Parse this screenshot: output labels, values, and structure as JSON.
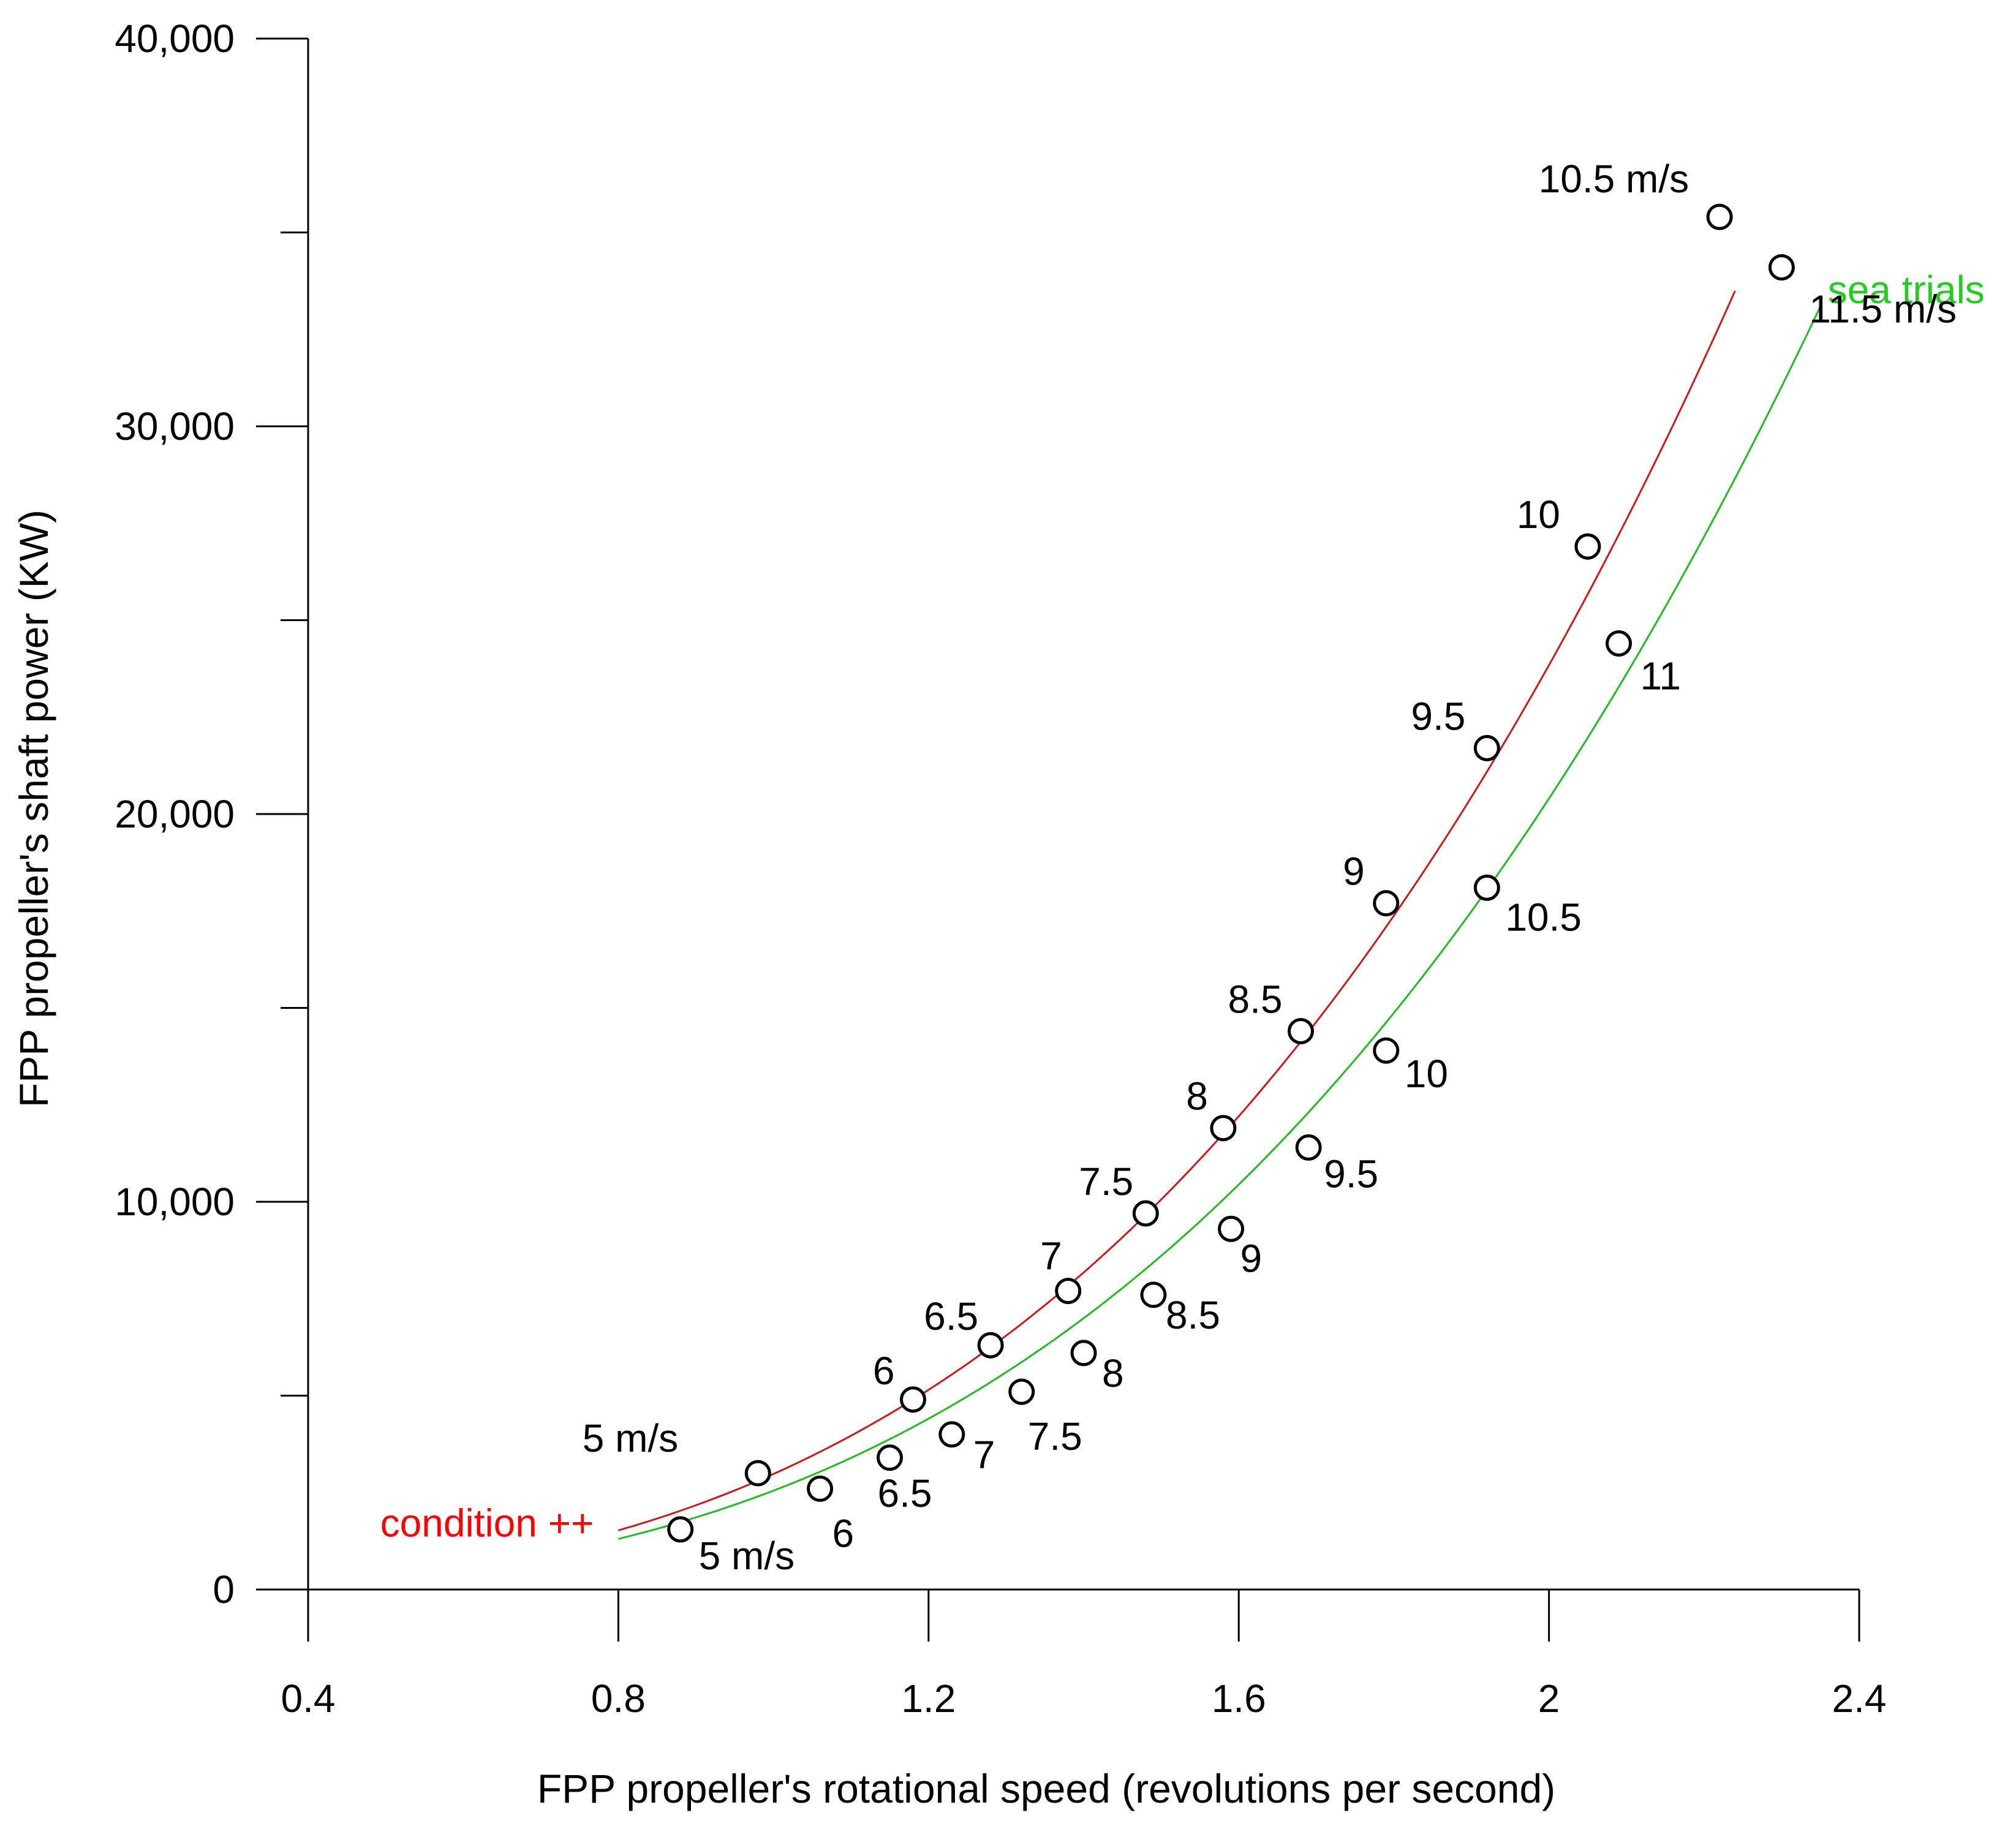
{
  "chart_data": {
    "type": "scatter",
    "title": "",
    "xlabel": "FPP propeller's rotational speed (revolutions per second)",
    "ylabel": "FPP propeller's shaft power (KW)",
    "xlim": [
      0.4,
      2.4
    ],
    "ylim": [
      0,
      40000
    ],
    "x_ticks": [
      {
        "value": 0.4,
        "label": "0.4"
      },
      {
        "value": 0.8,
        "label": "0.8"
      },
      {
        "value": 1.2,
        "label": "1.2"
      },
      {
        "value": 1.6,
        "label": "1.6"
      },
      {
        "value": 2.0,
        "label": "2"
      },
      {
        "value": 2.4,
        "label": "2.4"
      }
    ],
    "y_ticks": [
      {
        "value": 0,
        "label": "0"
      },
      {
        "value": 5000,
        "label": ""
      },
      {
        "value": 10000,
        "label": "10,000"
      },
      {
        "value": 15000,
        "label": ""
      },
      {
        "value": 20000,
        "label": "20,000"
      },
      {
        "value": 25000,
        "label": ""
      },
      {
        "value": 30000,
        "label": "30,000"
      },
      {
        "value": 35000,
        "label": ""
      },
      {
        "value": 40000,
        "label": "40,000"
      }
    ],
    "grid": false,
    "legend": "none",
    "series": [
      {
        "name": "condition ++",
        "color": "#cc1a1a",
        "label_color": "#ff0000",
        "curve_x_range": [
          0.8,
          2.24
        ],
        "curve_coefficient": 2980,
        "curve_exponent": 3.0,
        "points": [
          {
            "x": 0.98,
            "y": 3000,
            "label": "5 m/s"
          },
          {
            "x": 1.18,
            "y": 4900,
            "label": "6"
          },
          {
            "x": 1.28,
            "y": 6300,
            "label": "6.5"
          },
          {
            "x": 1.38,
            "y": 7700,
            "label": "7"
          },
          {
            "x": 1.48,
            "y": 9700,
            "label": "7.5"
          },
          {
            "x": 1.58,
            "y": 11900,
            "label": "8"
          },
          {
            "x": 1.68,
            "y": 14400,
            "label": "8.5"
          },
          {
            "x": 1.79,
            "y": 17700,
            "label": "9"
          },
          {
            "x": 1.92,
            "y": 21700,
            "label": "9.5"
          },
          {
            "x": 2.05,
            "y": 26900,
            "label": "10"
          },
          {
            "x": 2.22,
            "y": 35400,
            "label": "10.5 m/s"
          }
        ]
      },
      {
        "name": "sea trials",
        "color": "#22bb22",
        "label_color": "#22cc22",
        "curve_x_range": [
          0.8,
          2.35
        ],
        "curve_coefficient": 2550,
        "curve_exponent": 3.0,
        "points": [
          {
            "x": 0.88,
            "y": 1550,
            "label": "5 m/s"
          },
          {
            "x": 1.06,
            "y": 2600,
            "label": "6"
          },
          {
            "x": 1.15,
            "y": 3400,
            "label": "6.5"
          },
          {
            "x": 1.23,
            "y": 4000,
            "label": "7"
          },
          {
            "x": 1.32,
            "y": 5100,
            "label": "7.5"
          },
          {
            "x": 1.4,
            "y": 6100,
            "label": "8"
          },
          {
            "x": 1.49,
            "y": 7600,
            "label": "8.5"
          },
          {
            "x": 1.59,
            "y": 9300,
            "label": "9"
          },
          {
            "x": 1.69,
            "y": 11400,
            "label": "9.5"
          },
          {
            "x": 1.79,
            "y": 13900,
            "label": "10"
          },
          {
            "x": 1.92,
            "y": 18100,
            "label": "10.5"
          },
          {
            "x": 2.09,
            "y": 24400,
            "label": "11"
          },
          {
            "x": 2.3,
            "y": 34100,
            "label": "11.5 m/s"
          }
        ]
      }
    ]
  }
}
